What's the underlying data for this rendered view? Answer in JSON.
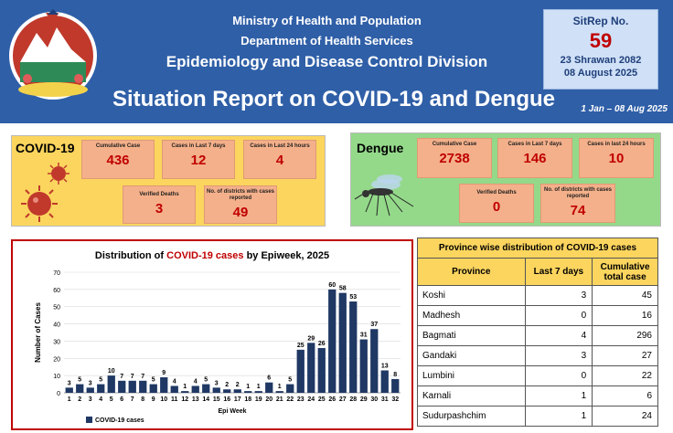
{
  "header": {
    "ministry": "Ministry of Health and Population",
    "department": "Department of Health Services",
    "division": "Epidemiology and Disease Control Division",
    "title": "Situation Report on COVID-19 and Dengue",
    "period": "1 Jan – 08 Aug 2025",
    "emblem_icon": "nepal-emblem-icon"
  },
  "sitrep": {
    "label": "SitRep No.",
    "number": "59",
    "date_nepali": "23 Shrawan 2082",
    "date": "08 August 2025"
  },
  "covid": {
    "name": "COVID-19",
    "stats": [
      {
        "label": "Cumulative Case",
        "value": "436"
      },
      {
        "label": "Cases in Last 7 days",
        "value": "12"
      },
      {
        "label": "Cases in Last 24 hours",
        "value": "4"
      },
      {
        "label": "Verified Deaths",
        "value": "3"
      },
      {
        "label": "No. of districts with cases reported",
        "value": "49"
      }
    ],
    "icon": "virus-icon"
  },
  "dengue": {
    "name": "Dengue",
    "stats": [
      {
        "label": "Cumulative Case",
        "value": "2738"
      },
      {
        "label": "Cases in Last 7 days",
        "value": "146"
      },
      {
        "label": "Cases in last 24 hours",
        "value": "10"
      },
      {
        "label": "Verified Deaths",
        "value": "0"
      },
      {
        "label": "No. of districts with cases reported",
        "value": "74"
      }
    ],
    "icon": "mosquito-icon"
  },
  "chart_title": {
    "pre": "Distribution of ",
    "highlight": "COVID-19 cases",
    "post": " by Epiweek, 2025"
  },
  "chart_data": {
    "type": "bar",
    "title": "Distribution of COVID-19 cases by Epiweek, 2025",
    "xlabel": "Epi Week",
    "ylabel": "Number of Cases",
    "ylim": [
      0,
      70
    ],
    "yticks": [
      0,
      10,
      20,
      30,
      40,
      50,
      60,
      70
    ],
    "categories": [
      "1",
      "2",
      "3",
      "4",
      "5",
      "6",
      "7",
      "8",
      "9",
      "10",
      "11",
      "12",
      "13",
      "14",
      "15",
      "16",
      "17",
      "18",
      "19",
      "20",
      "21",
      "22",
      "23",
      "24",
      "25",
      "26",
      "27",
      "28",
      "29",
      "30",
      "31",
      "32"
    ],
    "series": [
      {
        "name": "COVID-19 cases",
        "values": [
          3,
          5,
          3,
          5,
          10,
          7,
          7,
          7,
          5,
          9,
          4,
          1,
          4,
          5,
          3,
          2,
          2,
          1,
          1,
          6,
          1,
          5,
          25,
          29,
          26,
          60,
          58,
          53,
          31,
          37,
          13,
          8
        ]
      }
    ],
    "legend": "bottom-left",
    "color": "#1f3864"
  },
  "province_table": {
    "caption": "Province wise distribution of COVID-19 cases",
    "headers": [
      "Province",
      "Last 7 days",
      "Cumulative total case"
    ],
    "rows": [
      {
        "province": "Koshi",
        "last7": "3",
        "total": "45"
      },
      {
        "province": "Madhesh",
        "last7": "0",
        "total": "16"
      },
      {
        "province": "Bagmati",
        "last7": "4",
        "total": "296"
      },
      {
        "province": "Gandaki",
        "last7": "3",
        "total": "27"
      },
      {
        "province": "Lumbini",
        "last7": "0",
        "total": "22"
      },
      {
        "province": "Karnali",
        "last7": "1",
        "total": "6"
      },
      {
        "province": "Sudurpashchim",
        "last7": "1",
        "total": "24"
      }
    ]
  }
}
